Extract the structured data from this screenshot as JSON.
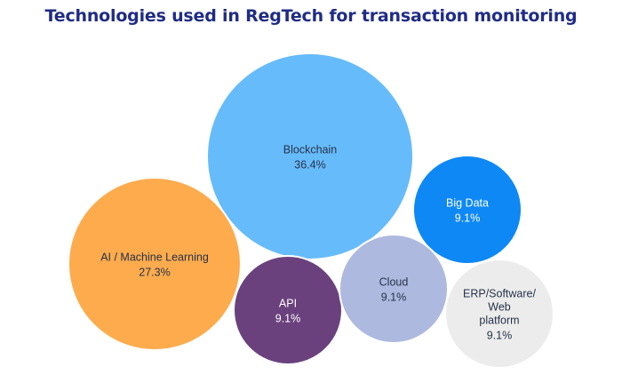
{
  "chart_data": {
    "type": "bubble",
    "title": "Technologies used in RegTech for transaction monitoring",
    "unit": "%",
    "series": [
      {
        "category": "Blockchain",
        "value": 36.4,
        "value_label": "36.4%",
        "color": "#66bbfb",
        "text_color": "#26324a"
      },
      {
        "category": "AI / Machine Learning",
        "value": 27.3,
        "value_label": "27.3%",
        "color": "#fdab4d",
        "text_color": "#26324a"
      },
      {
        "category": "Big Data",
        "value": 9.1,
        "value_label": "9.1%",
        "color": "#0e88f5",
        "text_color": "#ffffff"
      },
      {
        "category": "API",
        "value": 9.1,
        "value_label": "9.1%",
        "color": "#6a417d",
        "text_color": "#ffffff"
      },
      {
        "category": "Cloud",
        "value": 9.1,
        "value_label": "9.1%",
        "color": "#aeb9e0",
        "text_color": "#26324a"
      },
      {
        "category": "ERP/Software/ Web platform",
        "value": 9.1,
        "value_label": "9.1%",
        "color": "#ececec",
        "text_color": "#26324a"
      }
    ]
  }
}
